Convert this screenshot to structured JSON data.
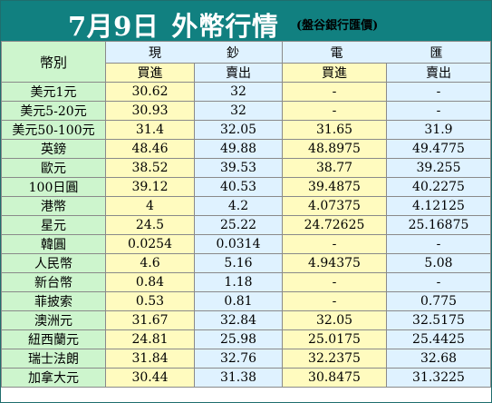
{
  "header": {
    "title_date": "7月9日",
    "title_main": "外幣行情",
    "source": "(盤谷銀行匯價)"
  },
  "columns": {
    "currency": "幣別",
    "cash_group": [
      "現",
      "鈔"
    ],
    "transfer_group": [
      "電",
      "匯"
    ],
    "buy": "買進",
    "sell": "賣出"
  },
  "rows": [
    {
      "name": "美元1元",
      "cash_buy": "30.62",
      "cash_sell": "32",
      "tt_buy": "-",
      "tt_sell": "-"
    },
    {
      "name": "美元5-20元",
      "cash_buy": "30.93",
      "cash_sell": "32",
      "tt_buy": "-",
      "tt_sell": "-"
    },
    {
      "name": "美元50-100元",
      "cash_buy": "31.4",
      "cash_sell": "32.05",
      "tt_buy": "31.65",
      "tt_sell": "31.9"
    },
    {
      "name": "英鎊",
      "cash_buy": "48.46",
      "cash_sell": "49.88",
      "tt_buy": "48.8975",
      "tt_sell": "49.4775"
    },
    {
      "name": "歐元",
      "cash_buy": "38.52",
      "cash_sell": "39.53",
      "tt_buy": "38.77",
      "tt_sell": "39.255"
    },
    {
      "name": "100日圓",
      "cash_buy": "39.12",
      "cash_sell": "40.53",
      "tt_buy": "39.4875",
      "tt_sell": "40.2275"
    },
    {
      "name": "港幣",
      "cash_buy": "4",
      "cash_sell": "4.2",
      "tt_buy": "4.07375",
      "tt_sell": "4.12125"
    },
    {
      "name": "星元",
      "cash_buy": "24.5",
      "cash_sell": "25.22",
      "tt_buy": "24.72625",
      "tt_sell": "25.16875"
    },
    {
      "name": "韓圓",
      "cash_buy": "0.0254",
      "cash_sell": "0.0314",
      "tt_buy": "-",
      "tt_sell": "-"
    },
    {
      "name": "人民幣",
      "cash_buy": "4.6",
      "cash_sell": "5.16",
      "tt_buy": "4.94375",
      "tt_sell": "5.08"
    },
    {
      "name": "新台幣",
      "cash_buy": "0.84",
      "cash_sell": "1.18",
      "tt_buy": "-",
      "tt_sell": "-"
    },
    {
      "name": "菲披索",
      "cash_buy": "0.53",
      "cash_sell": "0.81",
      "tt_buy": "-",
      "tt_sell": "0.775"
    },
    {
      "name": "澳洲元",
      "cash_buy": "31.67",
      "cash_sell": "32.84",
      "tt_buy": "32.05",
      "tt_sell": "32.5175"
    },
    {
      "name": "紐西蘭元",
      "cash_buy": "24.81",
      "cash_sell": "25.98",
      "tt_buy": "25.0175",
      "tt_sell": "25.4425"
    },
    {
      "name": "瑞士法朗",
      "cash_buy": "31.84",
      "cash_sell": "32.76",
      "tt_buy": "32.2375",
      "tt_sell": "32.68"
    },
    {
      "name": "加拿大元",
      "cash_buy": "30.44",
      "cash_sell": "31.38",
      "tt_buy": "30.8475",
      "tt_sell": "31.3225"
    }
  ],
  "colors": {
    "title_bg": "#118080",
    "name_col": "#cdf5cd",
    "buy_col": "#fffbbf",
    "sell_col": "#dff2ff",
    "grid": "#8a8a8a"
  }
}
